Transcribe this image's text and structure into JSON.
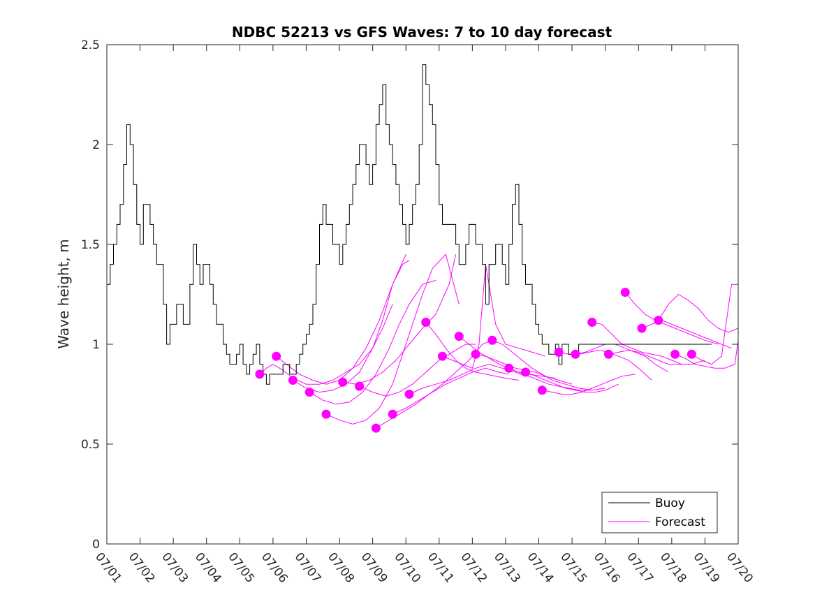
{
  "chart_data": {
    "type": "line",
    "title": "NDBC 52213 vs GFS Waves: 7 to 10 day forecast",
    "xlabel": "",
    "ylabel": "Wave height, m",
    "xlim": [
      1,
      20
    ],
    "ylim": [
      0,
      2.5
    ],
    "x_tick_labels": [
      "07/01",
      "07/02",
      "07/03",
      "07/04",
      "07/05",
      "07/06",
      "07/07",
      "07/08",
      "07/09",
      "07/10",
      "07/11",
      "07/12",
      "07/13",
      "07/14",
      "07/15",
      "07/16",
      "07/17",
      "07/18",
      "07/19",
      "07/20"
    ],
    "x_tick_values": [
      1,
      2,
      3,
      4,
      5,
      6,
      7,
      8,
      9,
      10,
      11,
      12,
      13,
      14,
      15,
      16,
      17,
      18,
      19,
      20
    ],
    "y_tick_labels": [
      "0",
      "0.5",
      "1",
      "1.5",
      "2",
      "2.5"
    ],
    "y_tick_values": [
      0,
      0.5,
      1,
      1.5,
      2,
      2.5
    ],
    "grid": false,
    "legend_position": "bottom-right",
    "series": [
      {
        "name": "Buoy",
        "color": "#000000",
        "x": [
          1.0,
          1.1,
          1.2,
          1.3,
          1.4,
          1.5,
          1.6,
          1.7,
          1.8,
          1.9,
          2.0,
          2.1,
          2.2,
          2.3,
          2.4,
          2.5,
          2.6,
          2.7,
          2.8,
          2.9,
          3.0,
          3.1,
          3.2,
          3.3,
          3.4,
          3.5,
          3.6,
          3.7,
          3.8,
          3.9,
          4.0,
          4.1,
          4.2,
          4.3,
          4.4,
          4.5,
          4.6,
          4.7,
          4.8,
          4.9,
          5.0,
          5.1,
          5.2,
          5.3,
          5.4,
          5.5,
          5.6,
          5.7,
          5.8,
          5.9,
          6.0,
          6.1,
          6.2,
          6.3,
          6.4,
          6.5,
          6.6,
          6.7,
          6.8,
          6.9,
          7.0,
          7.1,
          7.2,
          7.3,
          7.4,
          7.5,
          7.6,
          7.7,
          7.8,
          7.9,
          8.0,
          8.1,
          8.2,
          8.3,
          8.4,
          8.5,
          8.6,
          8.7,
          8.8,
          8.9,
          9.0,
          9.1,
          9.2,
          9.3,
          9.4,
          9.5,
          9.6,
          9.7,
          9.8,
          9.9,
          10.0,
          10.1,
          10.2,
          10.3,
          10.4,
          10.5,
          10.6,
          10.7,
          10.8,
          10.9,
          11.0,
          11.1,
          11.2,
          11.3,
          11.4,
          11.5,
          11.6,
          11.7,
          11.8,
          11.9,
          12.0,
          12.1,
          12.2,
          12.3,
          12.4,
          12.5,
          12.6,
          12.7,
          12.8,
          12.9,
          13.0,
          13.1,
          13.2,
          13.3,
          13.4,
          13.5,
          13.6,
          13.7,
          13.8,
          13.9,
          14.0,
          14.1,
          14.2,
          14.3,
          14.4,
          14.5,
          14.6,
          14.7,
          14.8,
          14.9,
          15.0,
          15.1,
          15.2,
          15.3,
          15.4,
          15.5,
          15.6,
          15.7,
          15.8,
          15.9,
          16.0,
          16.1,
          16.2,
          16.3,
          16.4,
          16.5,
          16.6,
          16.7,
          16.8,
          16.9,
          17.0,
          17.1,
          17.2,
          17.3,
          17.4,
          17.5,
          17.6,
          17.7,
          17.8,
          17.9,
          18.0,
          18.1,
          18.2,
          18.3,
          18.4,
          18.5,
          18.6,
          18.7,
          18.8,
          18.9,
          19.0,
          19.1,
          19.2
        ],
        "y": [
          1.3,
          1.4,
          1.5,
          1.6,
          1.7,
          1.9,
          2.1,
          2.0,
          1.8,
          1.6,
          1.5,
          1.7,
          1.7,
          1.6,
          1.5,
          1.4,
          1.4,
          1.2,
          1.0,
          1.1,
          1.1,
          1.2,
          1.2,
          1.1,
          1.1,
          1.3,
          1.5,
          1.4,
          1.3,
          1.4,
          1.4,
          1.3,
          1.2,
          1.1,
          1.1,
          1.0,
          0.95,
          0.9,
          0.9,
          0.95,
          1.0,
          0.9,
          0.85,
          0.9,
          0.95,
          1.0,
          0.9,
          0.85,
          0.8,
          0.85,
          0.85,
          0.85,
          0.85,
          0.9,
          0.9,
          0.85,
          0.85,
          0.9,
          0.95,
          1.0,
          1.05,
          1.1,
          1.2,
          1.4,
          1.6,
          1.7,
          1.6,
          1.6,
          1.5,
          1.5,
          1.4,
          1.5,
          1.6,
          1.7,
          1.8,
          1.9,
          2.0,
          2.0,
          1.9,
          1.8,
          1.9,
          2.1,
          2.2,
          2.3,
          2.1,
          2.0,
          1.9,
          1.8,
          1.7,
          1.6,
          1.5,
          1.6,
          1.7,
          1.8,
          2.0,
          2.4,
          2.3,
          2.2,
          2.1,
          1.9,
          1.7,
          1.6,
          1.6,
          1.6,
          1.6,
          1.5,
          1.4,
          1.4,
          1.5,
          1.6,
          1.6,
          1.5,
          1.5,
          1.4,
          1.2,
          1.4,
          1.4,
          1.5,
          1.5,
          1.4,
          1.3,
          1.5,
          1.7,
          1.8,
          1.6,
          1.4,
          1.3,
          1.3,
          1.2,
          1.1,
          1.05,
          1.0,
          1.0,
          0.95,
          0.95,
          1.0,
          0.9,
          1.0,
          1.0,
          0.95,
          0.95,
          0.95,
          1.0,
          1.0,
          1.0,
          1.0,
          1.0,
          1.0,
          1.0,
          1.0,
          1.0,
          1.0,
          1.0,
          1.0,
          1.0,
          1.0,
          1.0,
          1.0,
          1.0,
          1.0,
          1.0,
          1.0,
          1.0,
          1.0,
          1.0,
          1.0,
          1.0,
          1.0,
          1.0,
          1.0,
          1.0,
          1.0,
          1.0,
          1.0,
          1.0,
          1.0,
          1.0,
          1.0,
          1.0,
          1.0,
          1.0,
          1.0,
          1.0
        ]
      },
      {
        "name": "Forecast",
        "color": "#ff00ff"
      }
    ],
    "forecast_tracks": [
      {
        "x": [
          5.6,
          5.8,
          6.0,
          6.3,
          6.6,
          7.0,
          7.4,
          7.8,
          8.2,
          8.6,
          9.0,
          9.3,
          9.6
        ],
        "y": [
          0.85,
          0.88,
          0.9,
          0.87,
          0.83,
          0.8,
          0.8,
          0.82,
          0.86,
          0.9,
          0.98,
          1.08,
          1.2
        ]
      },
      {
        "x": [
          6.1,
          6.4,
          6.8,
          7.2,
          7.6,
          8.0,
          8.4,
          8.8,
          9.2,
          9.6,
          10.0
        ],
        "y": [
          0.94,
          0.9,
          0.85,
          0.82,
          0.8,
          0.82,
          0.88,
          0.98,
          1.12,
          1.3,
          1.45
        ]
      },
      {
        "x": [
          6.6,
          7.0,
          7.4,
          7.8,
          8.2,
          8.6,
          9.0,
          9.3,
          9.6,
          9.9,
          10.1
        ],
        "y": [
          0.82,
          0.78,
          0.76,
          0.77,
          0.8,
          0.86,
          0.98,
          1.12,
          1.3,
          1.4,
          1.42
        ]
      },
      {
        "x": [
          7.1,
          7.5,
          7.9,
          8.3,
          8.7,
          9.1,
          9.5,
          9.8,
          10.1,
          10.5,
          10.9
        ],
        "y": [
          0.76,
          0.72,
          0.7,
          0.71,
          0.76,
          0.85,
          0.98,
          1.1,
          1.2,
          1.3,
          1.32
        ]
      },
      {
        "x": [
          7.6,
          8.0,
          8.4,
          8.8,
          9.2,
          9.6,
          9.9,
          10.2,
          10.5,
          10.8,
          11.2,
          11.6
        ],
        "y": [
          0.65,
          0.62,
          0.6,
          0.62,
          0.68,
          0.8,
          0.95,
          1.1,
          1.25,
          1.38,
          1.45,
          1.2
        ]
      },
      {
        "x": [
          8.1,
          8.5,
          8.9,
          9.3,
          9.7,
          10.1,
          10.5,
          10.9,
          11.3,
          11.5
        ],
        "y": [
          0.81,
          0.8,
          0.82,
          0.86,
          0.92,
          1.0,
          1.08,
          1.15,
          1.3,
          1.45
        ]
      },
      {
        "x": [
          8.6,
          9.0,
          9.4,
          9.8,
          10.2,
          10.6,
          11.0,
          11.4,
          11.8,
          12.1
        ],
        "y": [
          0.79,
          0.76,
          0.74,
          0.76,
          0.8,
          0.86,
          0.92,
          0.96,
          1.0,
          1.0
        ]
      },
      {
        "x": [
          9.1,
          9.5,
          9.9,
          10.3,
          10.7,
          11.1,
          11.5,
          11.9,
          12.3,
          12.6
        ],
        "y": [
          0.58,
          0.62,
          0.66,
          0.7,
          0.75,
          0.8,
          0.86,
          0.92,
          1.0,
          1.02
        ]
      },
      {
        "x": [
          9.6,
          10.0,
          10.4,
          10.8,
          11.2,
          11.6,
          12.0,
          12.4,
          12.8,
          13.1
        ],
        "y": [
          0.65,
          0.68,
          0.72,
          0.76,
          0.8,
          0.83,
          0.86,
          0.88,
          0.86,
          0.85
        ]
      },
      {
        "x": [
          10.1,
          10.5,
          10.9,
          11.3,
          11.7,
          12.1,
          12.5,
          12.9,
          13.3,
          13.6
        ],
        "y": [
          0.75,
          0.78,
          0.8,
          0.82,
          0.85,
          0.88,
          0.9,
          0.88,
          0.86,
          0.84
        ]
      },
      {
        "x": [
          10.6,
          10.9,
          11.2,
          11.5,
          11.8,
          12.1,
          12.4,
          12.7,
          13.0,
          13.4
        ],
        "y": [
          1.11,
          1.05,
          0.98,
          0.92,
          0.88,
          0.86,
          0.85,
          0.84,
          0.83,
          0.82
        ]
      },
      {
        "x": [
          11.1,
          11.4,
          11.7,
          12.0,
          12.2,
          12.4,
          12.7,
          13.0,
          13.4,
          13.8,
          14.2
        ],
        "y": [
          0.94,
          0.92,
          0.9,
          0.88,
          1.0,
          1.4,
          1.1,
          1.0,
          0.98,
          0.96,
          0.94
        ]
      },
      {
        "x": [
          11.6,
          11.9,
          12.2,
          12.5,
          12.8,
          13.1,
          13.4,
          13.7,
          14.1,
          14.5
        ],
        "y": [
          1.04,
          1.0,
          0.96,
          0.93,
          0.9,
          0.88,
          0.86,
          0.85,
          0.84,
          0.83
        ]
      },
      {
        "x": [
          12.1,
          12.4,
          12.7,
          13.0,
          13.3,
          13.6,
          13.9,
          14.2,
          14.6,
          15.0
        ],
        "y": [
          0.95,
          0.94,
          0.92,
          0.9,
          0.88,
          0.87,
          0.86,
          0.84,
          0.82,
          0.8
        ]
      },
      {
        "x": [
          12.6,
          12.9,
          13.2,
          13.5,
          13.8,
          14.1,
          14.4,
          14.8,
          15.2,
          15.6
        ],
        "y": [
          1.02,
          1.0,
          0.96,
          0.92,
          0.88,
          0.85,
          0.82,
          0.8,
          0.78,
          0.77
        ]
      },
      {
        "x": [
          13.1,
          13.4,
          13.7,
          14.0,
          14.3,
          14.6,
          14.9,
          15.2,
          15.6,
          16.0
        ],
        "y": [
          0.88,
          0.86,
          0.84,
          0.82,
          0.8,
          0.79,
          0.78,
          0.77,
          0.77,
          0.78
        ]
      },
      {
        "x": [
          13.6,
          13.9,
          14.2,
          14.5,
          14.8,
          15.1,
          15.4,
          15.7,
          16.0,
          16.4
        ],
        "y": [
          0.86,
          0.84,
          0.82,
          0.8,
          0.78,
          0.77,
          0.76,
          0.76,
          0.77,
          0.8
        ]
      },
      {
        "x": [
          14.1,
          14.4,
          14.7,
          15.0,
          15.3,
          15.6,
          15.9,
          16.2,
          16.5,
          16.9
        ],
        "y": [
          0.77,
          0.76,
          0.75,
          0.75,
          0.76,
          0.78,
          0.8,
          0.82,
          0.84,
          0.85
        ]
      },
      {
        "x": [
          14.6,
          14.9,
          15.2,
          15.5,
          15.8,
          16.1,
          16.4,
          16.7,
          17.0,
          17.4
        ],
        "y": [
          0.96,
          0.95,
          0.95,
          0.96,
          0.97,
          0.96,
          0.94,
          0.92,
          0.88,
          0.82
        ]
      },
      {
        "x": [
          15.1,
          15.4,
          15.7,
          16.0,
          16.3,
          16.6,
          16.9,
          17.2,
          17.5,
          17.9
        ],
        "y": [
          0.95,
          0.96,
          0.98,
          1.0,
          1.0,
          0.98,
          0.96,
          0.94,
          0.9,
          0.86
        ]
      },
      {
        "x": [
          15.6,
          15.9,
          16.2,
          16.5,
          16.8,
          17.1,
          17.4,
          17.7,
          18.0,
          18.3
        ],
        "y": [
          1.11,
          1.1,
          1.05,
          1.0,
          0.98,
          0.96,
          0.95,
          0.94,
          0.92,
          0.9
        ]
      },
      {
        "x": [
          16.1,
          16.4,
          16.7,
          17.0,
          17.3,
          17.6,
          17.9,
          18.2,
          18.6,
          19.0
        ],
        "y": [
          0.95,
          0.96,
          0.97,
          0.96,
          0.94,
          0.92,
          0.9,
          0.9,
          0.9,
          0.92
        ]
      },
      {
        "x": [
          16.6,
          16.9,
          17.2,
          17.5,
          17.8,
          18.1,
          18.4,
          18.7,
          19.0,
          19.4
        ],
        "y": [
          1.26,
          1.2,
          1.15,
          1.12,
          1.1,
          1.08,
          1.06,
          1.04,
          1.02,
          1.0
        ]
      },
      {
        "x": [
          17.1,
          17.4,
          17.7,
          18.0,
          18.3,
          18.6,
          18.9,
          19.2,
          19.5,
          19.8
        ],
        "y": [
          1.08,
          1.1,
          1.12,
          1.1,
          1.08,
          1.06,
          1.04,
          1.02,
          1.0,
          0.98
        ]
      },
      {
        "x": [
          17.6,
          17.9,
          18.2,
          18.5,
          18.8,
          19.1,
          19.4,
          19.7,
          20.0
        ],
        "y": [
          1.12,
          1.2,
          1.25,
          1.22,
          1.18,
          1.12,
          1.08,
          1.06,
          1.08
        ]
      },
      {
        "x": [
          18.1,
          18.4,
          18.7,
          19.0,
          19.3,
          19.6,
          19.9,
          20.0
        ],
        "y": [
          0.95,
          0.93,
          0.9,
          0.89,
          0.88,
          0.88,
          0.9,
          1.02
        ]
      },
      {
        "x": [
          18.6,
          18.9,
          19.2,
          19.5,
          19.8,
          20.0
        ],
        "y": [
          0.95,
          0.92,
          0.9,
          0.94,
          1.3,
          1.3
        ]
      }
    ],
    "forecast_markers": {
      "x": [
        5.6,
        6.1,
        6.6,
        7.1,
        7.6,
        8.1,
        8.6,
        9.1,
        9.6,
        10.1,
        10.6,
        11.1,
        11.6,
        12.1,
        12.6,
        13.1,
        13.6,
        14.1,
        14.6,
        15.1,
        15.6,
        16.1,
        16.6,
        17.1,
        17.6,
        18.1,
        18.6
      ],
      "y": [
        0.85,
        0.94,
        0.82,
        0.76,
        0.65,
        0.81,
        0.79,
        0.58,
        0.65,
        0.75,
        1.11,
        0.94,
        1.04,
        0.95,
        1.02,
        0.88,
        0.86,
        0.77,
        0.96,
        0.95,
        1.11,
        0.95,
        1.26,
        1.08,
        1.12,
        0.95,
        0.95
      ]
    },
    "legend": [
      {
        "label": "Buoy",
        "color": "#000000"
      },
      {
        "label": "Forecast",
        "color": "#ff00ff"
      }
    ]
  }
}
